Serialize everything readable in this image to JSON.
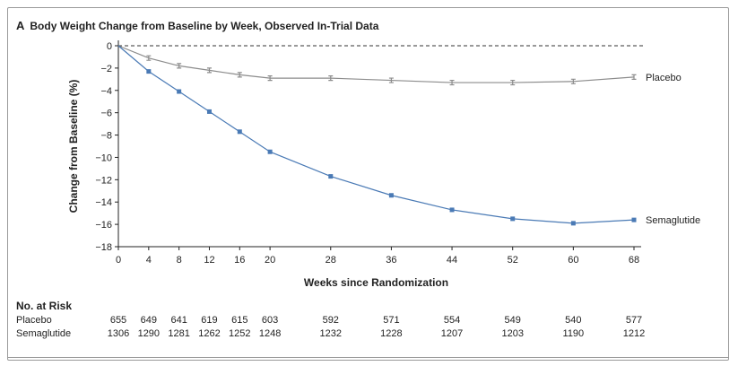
{
  "chart_data": {
    "type": "line",
    "panel_label": "A",
    "title": "Body Weight Change from Baseline by Week, Observed In-Trial Data",
    "xlabel": "Weeks since Randomization",
    "ylabel": "Change from Baseline (%)",
    "xlim": [
      0,
      68
    ],
    "ylim": [
      -18,
      0
    ],
    "xticks": [
      0,
      4,
      8,
      12,
      16,
      20,
      28,
      36,
      44,
      52,
      60,
      68
    ],
    "yticks": [
      0,
      -2,
      -4,
      -6,
      -8,
      -10,
      -12,
      -14,
      -16,
      -18
    ],
    "x": [
      0,
      4,
      8,
      12,
      16,
      20,
      28,
      36,
      44,
      52,
      60,
      68
    ],
    "reference_line": 0,
    "series": [
      {
        "name": "Placebo",
        "color": "#8c8c8c",
        "marker": "error-bar",
        "values": [
          0,
          -1.1,
          -1.8,
          -2.2,
          -2.6,
          -2.9,
          -2.9,
          -3.1,
          -3.3,
          -3.3,
          -3.2,
          -2.8
        ]
      },
      {
        "name": "Semaglutide",
        "color": "#4a7ab5",
        "marker": "square",
        "values": [
          0,
          -2.3,
          -4.1,
          -5.9,
          -7.7,
          -9.5,
          -11.7,
          -13.4,
          -14.7,
          -15.5,
          -15.9,
          -15.6
        ]
      }
    ]
  },
  "risk_table": {
    "title": "No. at Risk",
    "weeks": [
      0,
      4,
      8,
      12,
      16,
      20,
      28,
      36,
      44,
      52,
      60,
      68
    ],
    "rows": [
      {
        "name": "Placebo",
        "values": [
          "655",
          "649",
          "641",
          "619",
          "615",
          "603",
          "592",
          "571",
          "554",
          "549",
          "540",
          "577"
        ]
      },
      {
        "name": "Semaglutide",
        "values": [
          "1306",
          "1290",
          "1281",
          "1262",
          "1252",
          "1248",
          "1232",
          "1228",
          "1207",
          "1203",
          "1190",
          "1212"
        ]
      }
    ]
  }
}
